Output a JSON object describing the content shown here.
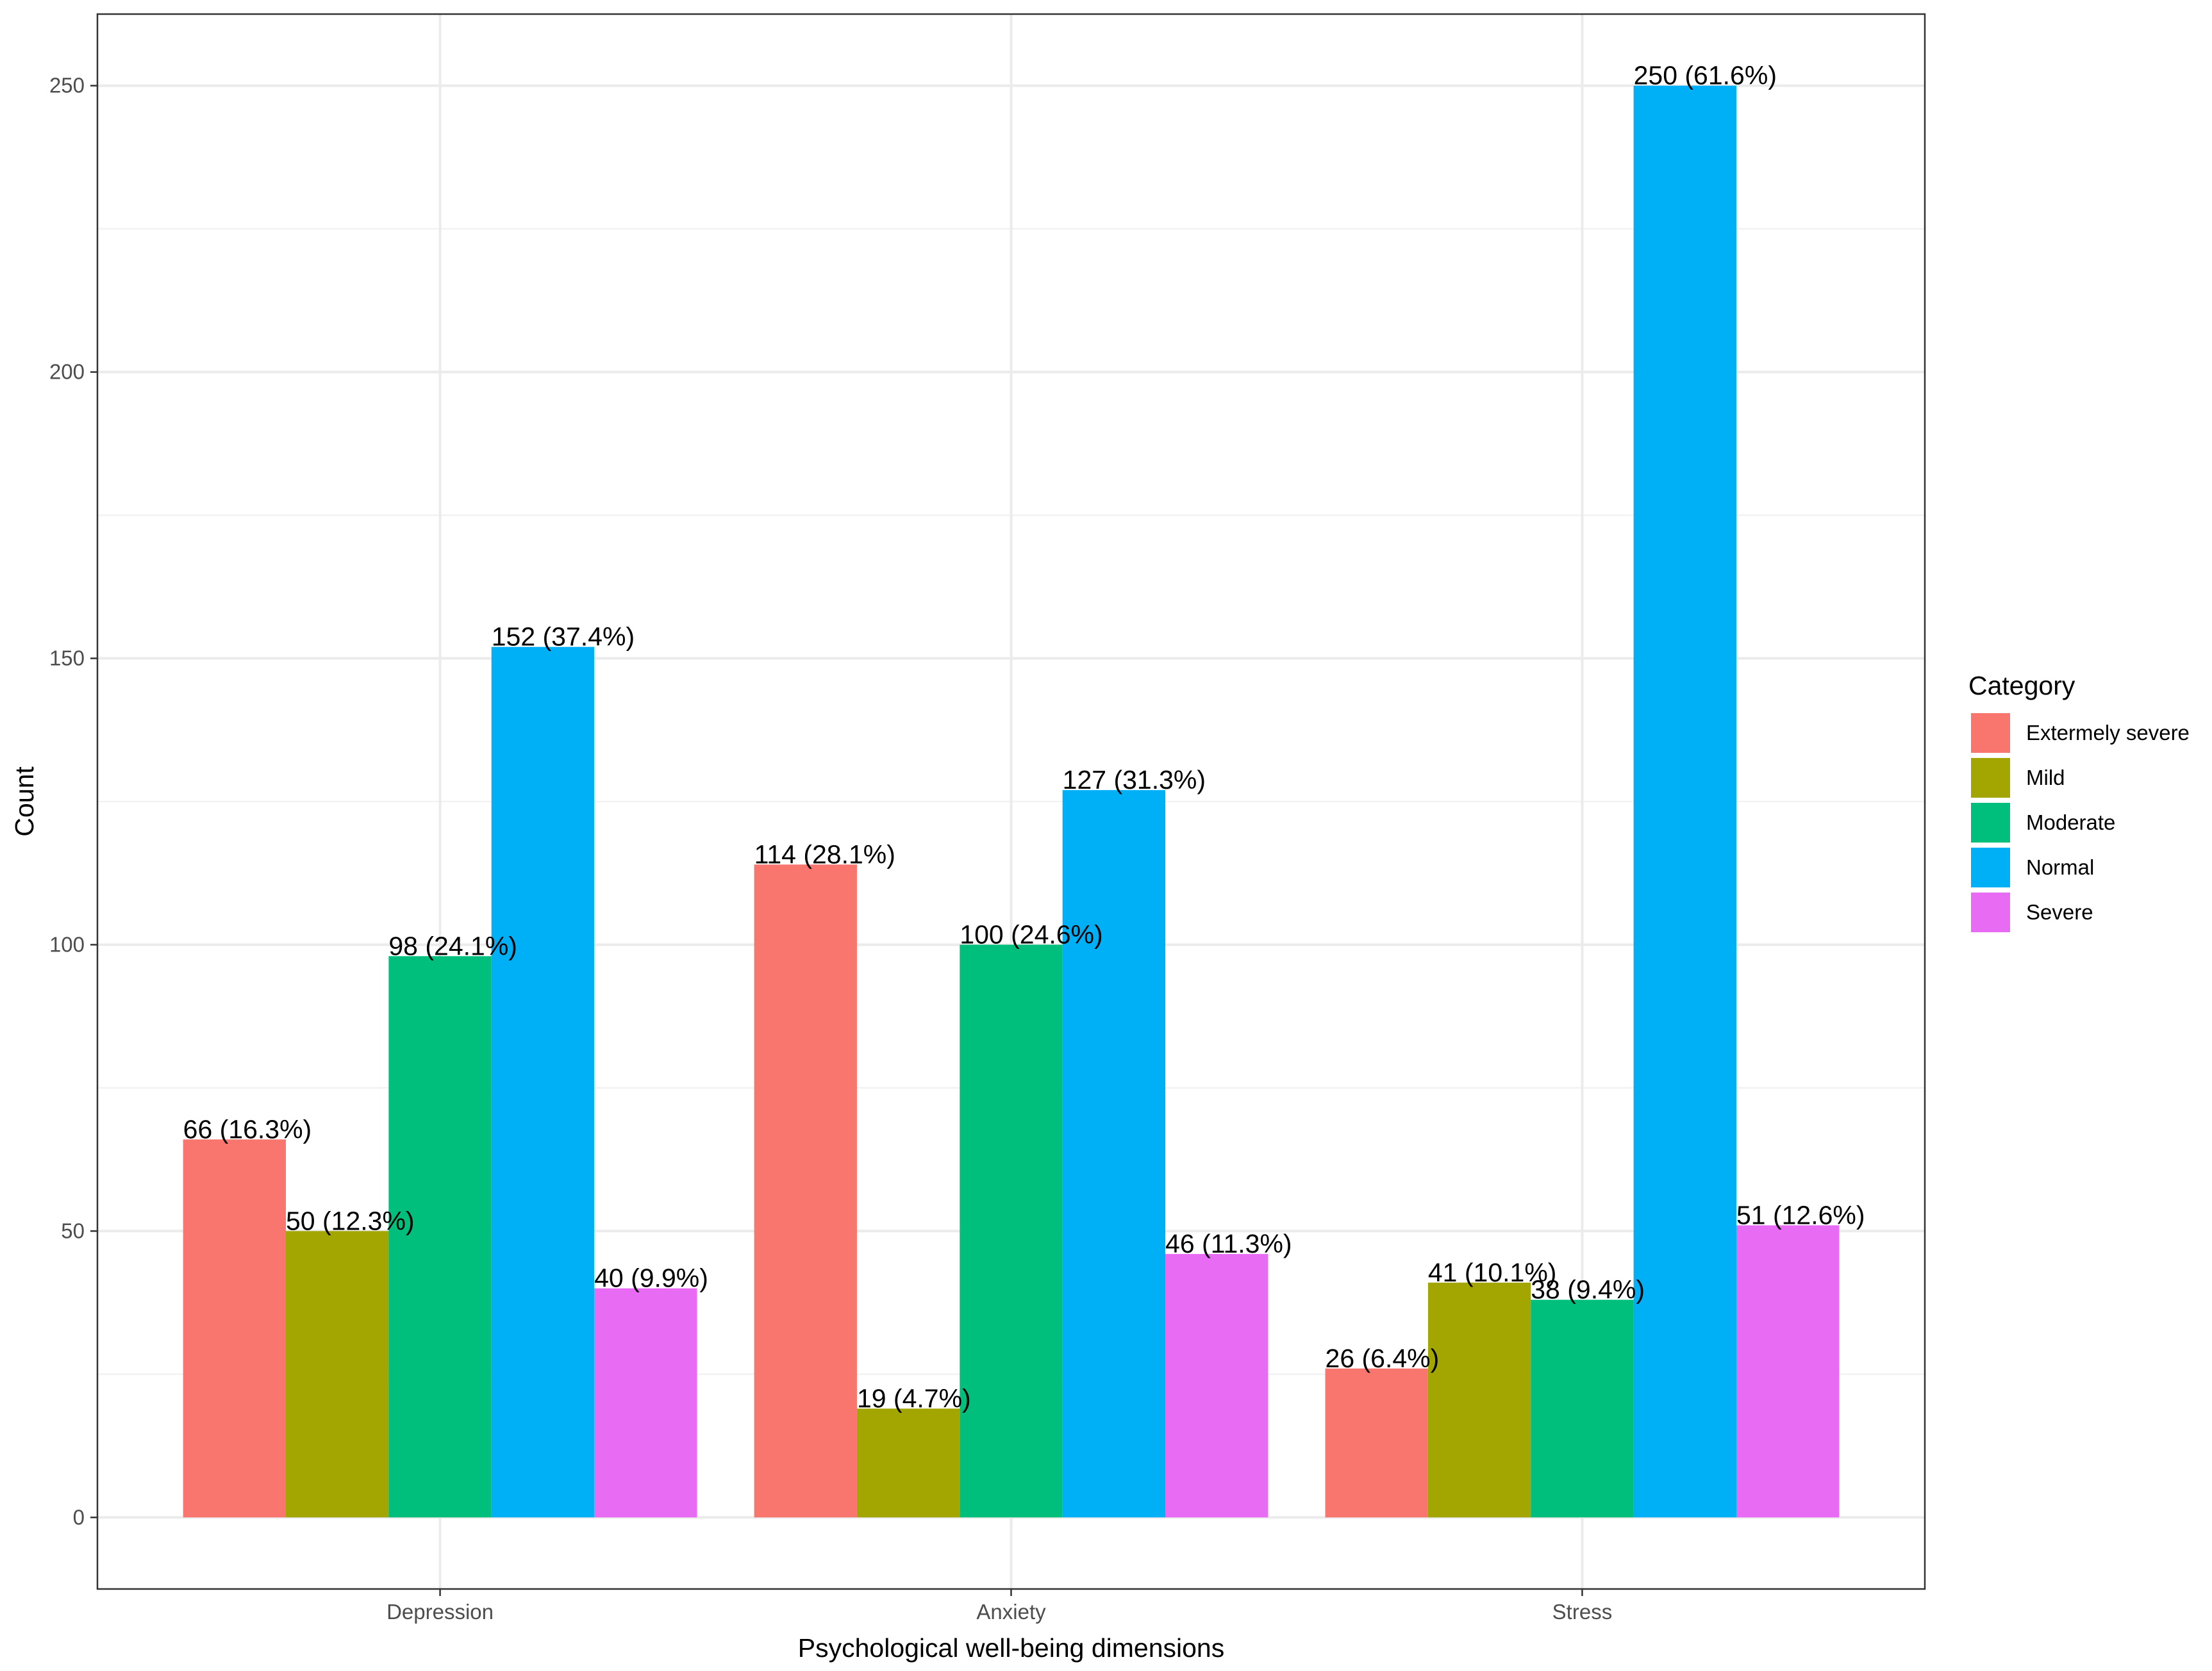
{
  "chart_data": {
    "type": "bar",
    "title": "",
    "xlabel": "Psychological well-being dimensions",
    "ylabel": "Count",
    "ylim": [
      -12.5,
      262.5
    ],
    "yticks": [
      0,
      50,
      100,
      150,
      200,
      250
    ],
    "categories": [
      "Depression",
      "Anxiety",
      "Stress"
    ],
    "legend_title": "Category",
    "legend_position": "right",
    "grid": true,
    "series": [
      {
        "name": "Extermely severe",
        "color": "#F8766D",
        "values": [
          66,
          114,
          26
        ],
        "labels": [
          "66 (16.3%)",
          "114 (28.1%)",
          "26 (6.4%)"
        ]
      },
      {
        "name": "Mild",
        "color": "#A3A500",
        "values": [
          50,
          19,
          41
        ],
        "labels": [
          "50 (12.3%)",
          "19 (4.7%)",
          "41 (10.1%)"
        ]
      },
      {
        "name": "Moderate",
        "color": "#00BF7D",
        "values": [
          98,
          100,
          38
        ],
        "labels": [
          "98 (24.1%)",
          "100 (24.6%)",
          "38 (9.4%)"
        ]
      },
      {
        "name": "Normal",
        "color": "#00B0F6",
        "values": [
          152,
          127,
          250
        ],
        "labels": [
          "152 (37.4%)",
          "127 (31.3%)",
          "250 (61.6%)"
        ]
      },
      {
        "name": "Severe",
        "color": "#E76BF3",
        "values": [
          40,
          46,
          51
        ],
        "labels": [
          "40 (9.9%)",
          "46 (11.3%)",
          "51 (12.6%)"
        ]
      }
    ]
  }
}
